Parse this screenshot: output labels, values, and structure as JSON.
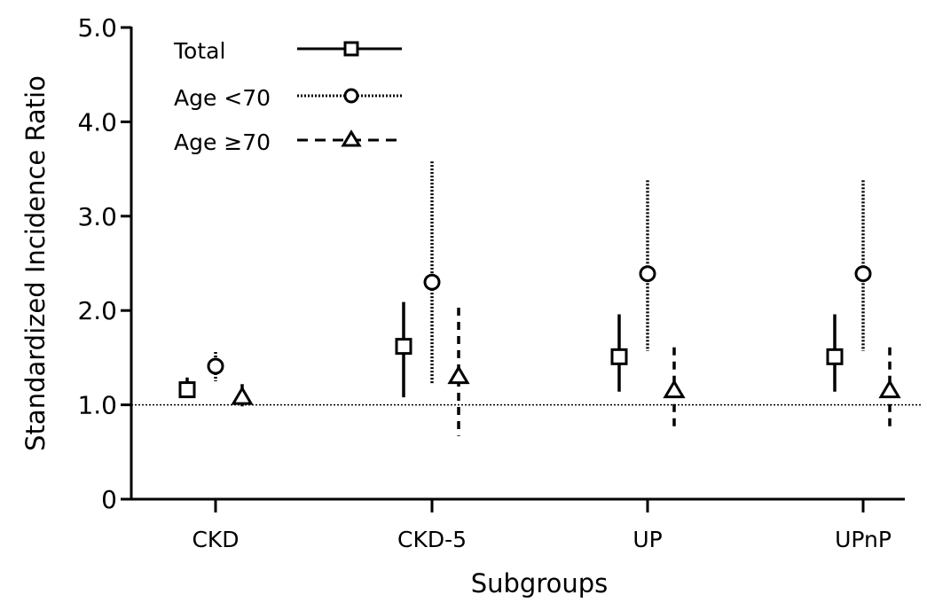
{
  "chart_data": {
    "type": "scatter",
    "subtype": "point-with-error-bars",
    "title": "",
    "xlabel": "Subgroups",
    "ylabel": "Standardized Incidence Ratio",
    "ylim": [
      0,
      5
    ],
    "yticks": [
      "0",
      "1.0",
      "2.0",
      "3.0",
      "4.0",
      "5.0"
    ],
    "ytick_values": [
      0,
      1,
      2,
      3,
      4,
      5
    ],
    "reference_line": 1.0,
    "grid": false,
    "legend_position": "top-left",
    "categories": [
      "CKD",
      "CKD-5",
      "UP",
      "UPnP"
    ],
    "series": [
      {
        "name": "Total",
        "marker": "square",
        "line": "solid",
        "values": [
          1.16,
          1.62,
          1.51,
          1.51
        ],
        "lower": [
          1.08,
          1.08,
          1.14,
          1.14
        ],
        "upper": [
          1.29,
          2.09,
          1.96,
          1.96
        ]
      },
      {
        "name": "Age <70",
        "marker": "circle",
        "line": "dotted",
        "values": [
          1.41,
          2.3,
          2.39,
          2.39
        ],
        "lower": [
          1.25,
          1.23,
          1.57,
          1.57
        ],
        "upper": [
          1.56,
          3.58,
          3.38,
          3.38
        ]
      },
      {
        "name": "Age ≥70",
        "marker": "triangle",
        "line": "dashed",
        "values": [
          1.08,
          1.3,
          1.15,
          1.15
        ],
        "lower": [
          0.95,
          0.67,
          0.76,
          0.76
        ],
        "upper": [
          1.22,
          2.03,
          1.61,
          1.61
        ]
      }
    ]
  }
}
